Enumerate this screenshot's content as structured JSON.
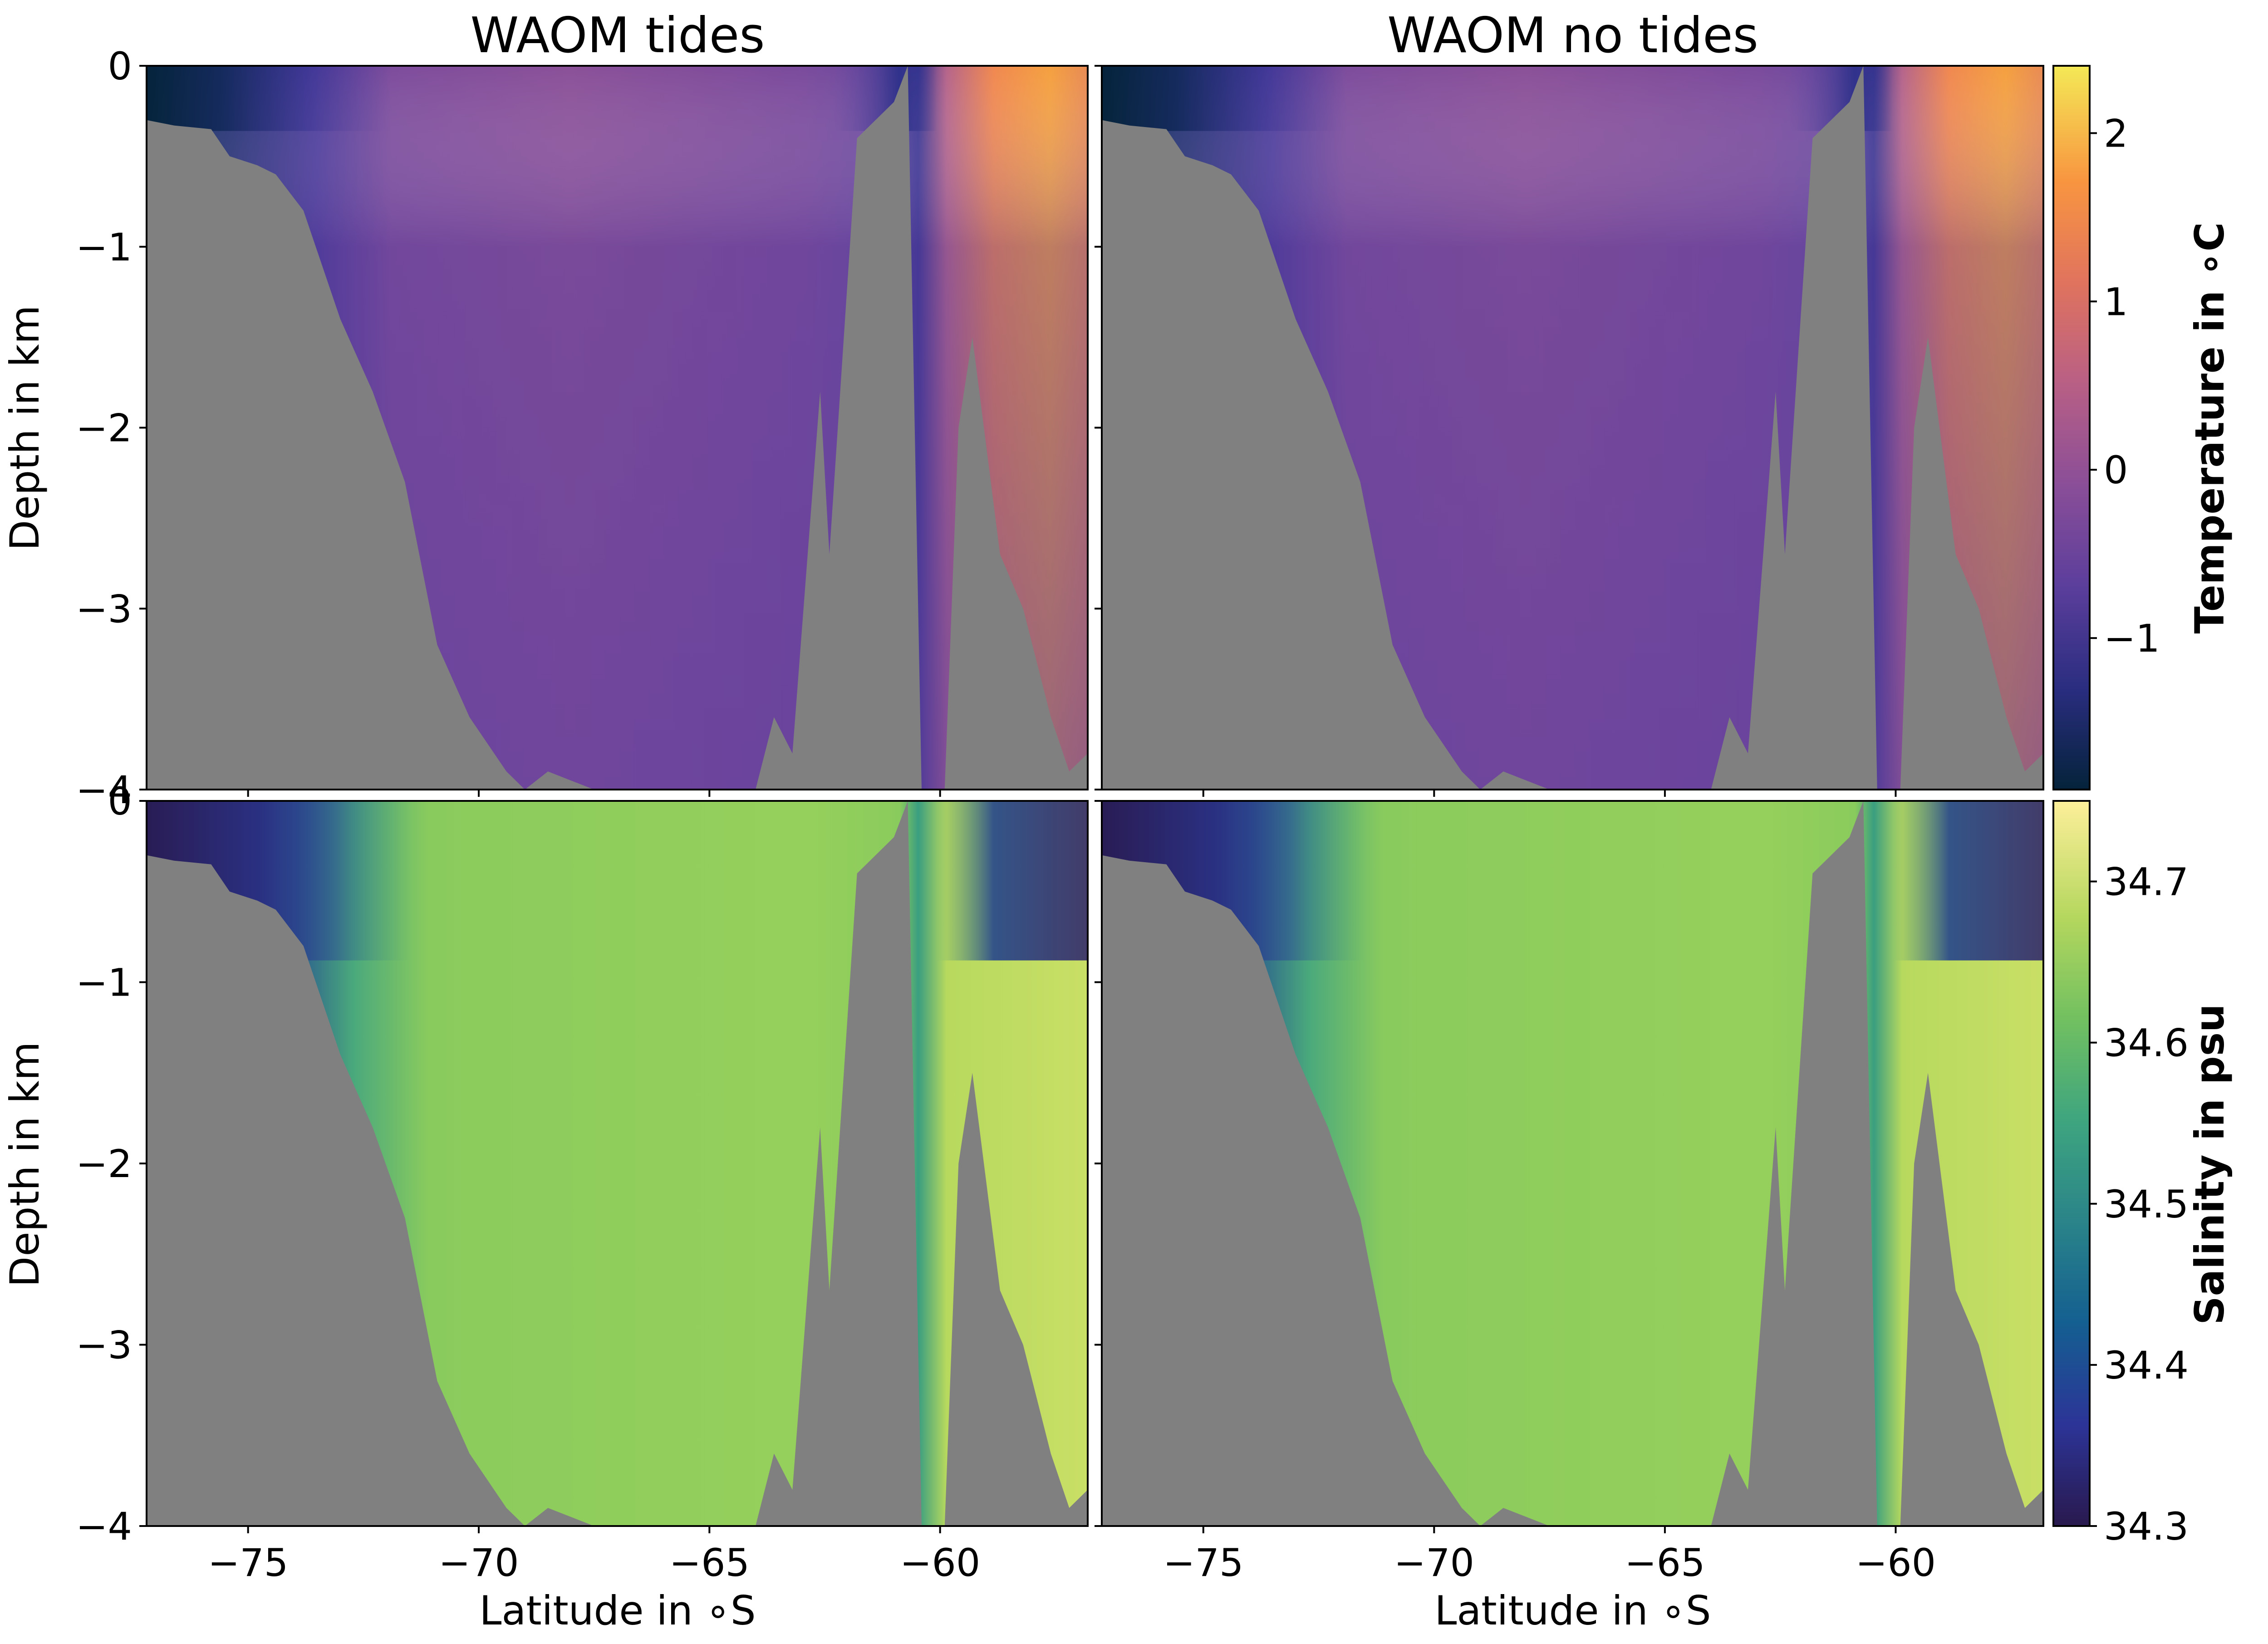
{
  "chart_data": [
    {
      "type": "heatmap",
      "title": "WAOM tides",
      "xlabel": "",
      "ylabel": "Depth in km",
      "xlim": [
        -77.2,
        -56.8
      ],
      "ylim": [
        -4,
        0
      ],
      "y_ticks": [
        "0",
        "−1",
        "−2",
        "−3",
        "−4"
      ],
      "variable": "temperature",
      "colormap": "thermal"
    },
    {
      "type": "heatmap",
      "title": "WAOM no tides",
      "xlabel": "",
      "ylabel": "",
      "xlim": [
        -77.2,
        -56.8
      ],
      "ylim": [
        -4,
        0
      ],
      "variable": "temperature",
      "colormap": "thermal"
    },
    {
      "type": "heatmap",
      "title": "",
      "xlabel": "Latitude in ∘S",
      "ylabel": "Depth in km",
      "xlim": [
        -77.2,
        -56.8
      ],
      "ylim": [
        -4,
        0
      ],
      "x_ticks": [
        "−75",
        "−70",
        "−65",
        "−60"
      ],
      "y_ticks": [
        "0",
        "−1",
        "−2",
        "−3",
        "−4"
      ],
      "variable": "salinity",
      "colormap": "haline"
    },
    {
      "type": "heatmap",
      "title": "",
      "xlabel": "Latitude in ∘S",
      "ylabel": "",
      "xlim": [
        -77.2,
        -56.8
      ],
      "ylim": [
        -4,
        0
      ],
      "x_ticks": [
        "−75",
        "−70",
        "−65",
        "−60"
      ],
      "variable": "salinity",
      "colormap": "haline"
    }
  ],
  "colorbars": [
    {
      "label": "Temperature in ∘C",
      "range": [
        -1.9,
        2.4
      ],
      "ticks": [
        -1,
        0,
        1,
        2
      ],
      "tick_labels": [
        "−1",
        "0",
        "1",
        "2"
      ],
      "colors": [
        "#04233a",
        "#2a2d80",
        "#5b3e9c",
        "#8a4e98",
        "#b85f85",
        "#e0735e",
        "#f89540",
        "#f4e956"
      ]
    },
    {
      "label": "Salinity in psu",
      "range": [
        34.3,
        34.75
      ],
      "ticks": [
        34.3,
        34.4,
        34.5,
        34.6,
        34.7
      ],
      "tick_labels": [
        "34.3",
        "34.4",
        "34.5",
        "34.6",
        "34.7"
      ],
      "colors": [
        "#29194e",
        "#2c3497",
        "#145f91",
        "#2a8489",
        "#3ea57f",
        "#72c060",
        "#b5d75e",
        "#fdef9a"
      ]
    }
  ],
  "colors": {
    "bathymetry": "#808080",
    "temperature_interior": "#6b449d",
    "salinity_interior": "#9ed45a"
  },
  "bathymetry_depth_km": [
    [
      -77.2,
      -0.3
    ],
    [
      -76.6,
      -0.33
    ],
    [
      -75.8,
      -0.35
    ],
    [
      -75.4,
      -0.5
    ],
    [
      -74.8,
      -0.55
    ],
    [
      -74.4,
      -0.6
    ],
    [
      -73.8,
      -0.8
    ],
    [
      -73.0,
      -1.4
    ],
    [
      -72.3,
      -1.8
    ],
    [
      -71.6,
      -2.3
    ],
    [
      -70.9,
      -3.2
    ],
    [
      -70.2,
      -3.6
    ],
    [
      -69.4,
      -3.9
    ],
    [
      -69.0,
      -4.0
    ],
    [
      -68.5,
      -3.9
    ],
    [
      -68.0,
      -3.95
    ],
    [
      -67.5,
      -4.0
    ],
    [
      -64.0,
      -4.0
    ],
    [
      -63.6,
      -3.6
    ],
    [
      -63.2,
      -3.8
    ],
    [
      -62.6,
      -1.8
    ],
    [
      -62.4,
      -2.7
    ],
    [
      -61.8,
      -0.4
    ],
    [
      -61.0,
      -0.2
    ],
    [
      -60.7,
      0.0
    ],
    [
      -60.4,
      -4.0
    ],
    [
      -59.9,
      -4.0
    ],
    [
      -59.6,
      -2.0
    ],
    [
      -59.3,
      -1.5
    ],
    [
      -58.7,
      -2.7
    ],
    [
      -58.2,
      -3.0
    ],
    [
      -57.6,
      -3.6
    ],
    [
      -57.2,
      -3.9
    ],
    [
      -56.8,
      -3.8
    ]
  ]
}
